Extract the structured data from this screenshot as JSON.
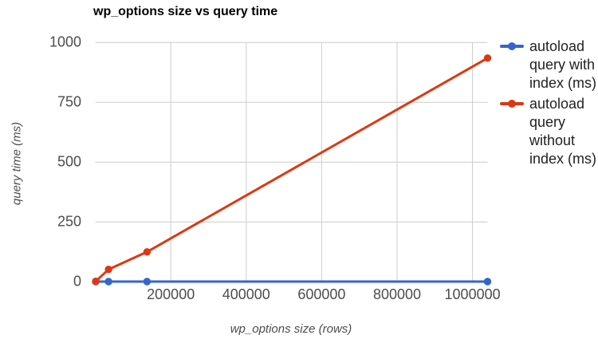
{
  "chart_data": {
    "type": "line",
    "title": "wp_options size vs query time",
    "xlabel": "wp_options size (rows)",
    "ylabel": "query time (ms)",
    "x": [
      1000,
      35000,
      137000,
      1040000
    ],
    "series": [
      {
        "name": "autoload query with index (ms)",
        "color": "#3366cc",
        "values": [
          1,
          1,
          1,
          1
        ]
      },
      {
        "name": "autoload query without index (ms)",
        "color": "#dc3912",
        "values": [
          2,
          52,
          125,
          935
        ]
      }
    ],
    "x_ticks": [
      200000,
      400000,
      600000,
      800000,
      1000000
    ],
    "y_ticks": [
      0,
      250,
      500,
      750,
      1000
    ],
    "xlim": [
      0,
      1040000
    ],
    "ylim": [
      0,
      1000
    ],
    "grid": true,
    "legend_position": "right",
    "colors": {
      "grid": "#cccccc",
      "tick_label": "#4d4d4d",
      "axis_title": "#4d4d4d",
      "title": "#000000",
      "legend_text": "#222222",
      "background": "#ffffff"
    }
  }
}
